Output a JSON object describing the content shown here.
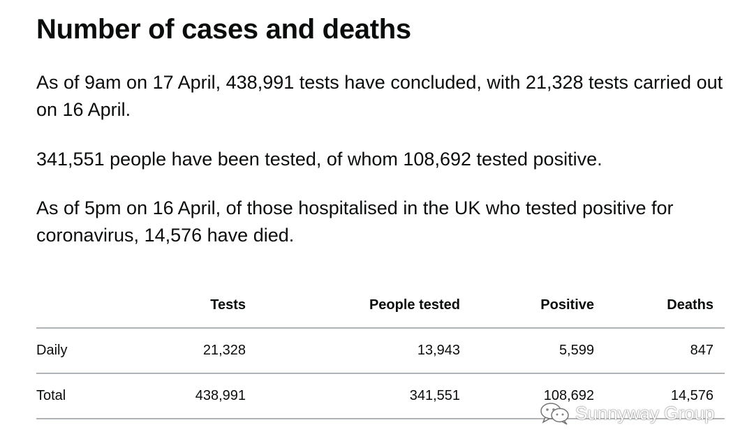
{
  "heading": "Number of cases and deaths",
  "paragraphs": {
    "p1": "As of 9am on 17 April, 438,991 tests have concluded, with 21,328 tests carried out on 16 April.",
    "p2": "341,551 people have been tested, of whom 108,692 tested positive.",
    "p3": "As of 5pm on 16 April, of those hospitalised in the UK who tested positive for coronavirus, 14,576 have died."
  },
  "table": {
    "headers": [
      "",
      "Tests",
      "People tested",
      "Positive",
      "Deaths"
    ],
    "rows": [
      [
        "Daily",
        "21,328",
        "13,943",
        "5,599",
        "847"
      ],
      [
        "Total",
        "438,991",
        "341,551",
        "108,692",
        "14,576"
      ]
    ]
  },
  "watermark": {
    "text": "Sunnyway Group",
    "icon": "chat-bubbles-icon"
  }
}
